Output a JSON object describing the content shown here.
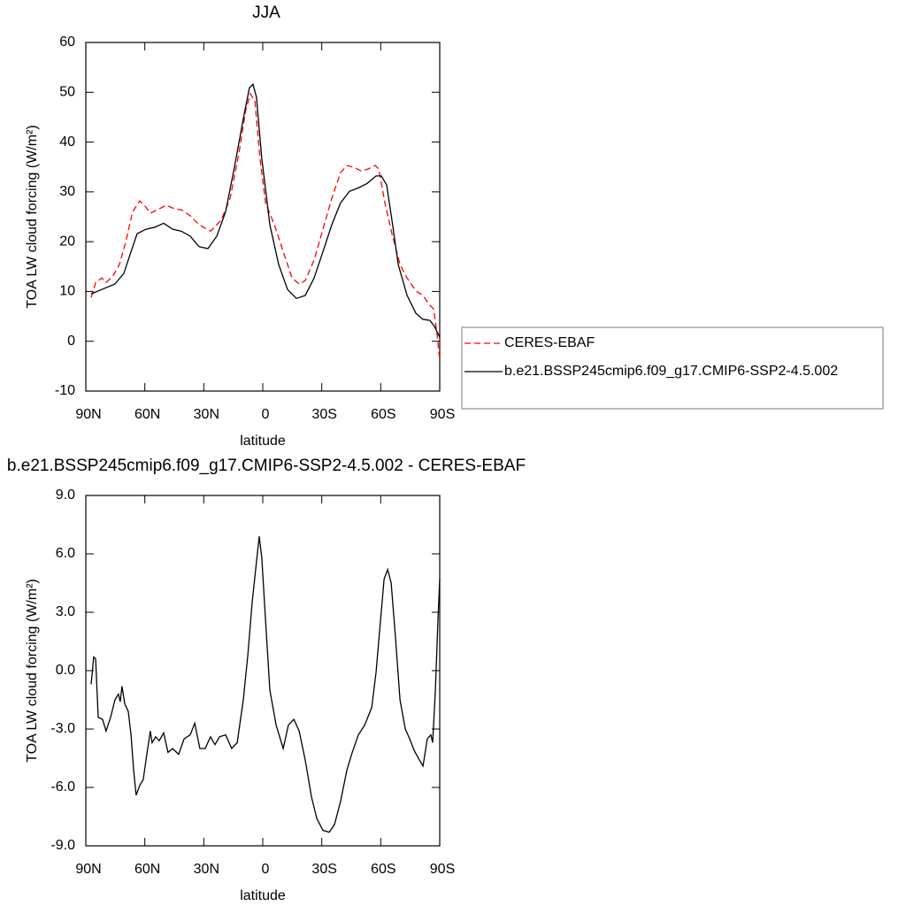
{
  "chart_data": [
    {
      "type": "line",
      "title": "JJA",
      "xlabel": "latitude",
      "ylabel": "TOA LW cloud forcing (W/m²)",
      "xlim": [
        90,
        -90
      ],
      "xticks": [
        {
          "value": 90,
          "label": "90N"
        },
        {
          "value": 60,
          "label": "60N"
        },
        {
          "value": 30,
          "label": "30N"
        },
        0,
        {
          "value": -30,
          "label": "30S"
        },
        {
          "value": -60,
          "label": "60S"
        },
        {
          "value": -90,
          "label": "90S"
        }
      ],
      "ylim": [
        -10,
        60
      ],
      "yticks": [
        -10,
        0,
        10,
        20,
        30,
        40,
        50,
        60
      ],
      "legend": "right",
      "series": [
        {
          "name": "CERES-EBAF",
          "color": "#ff0000",
          "dashed": true,
          "x": [
            87.3,
            85,
            81.9,
            79.7,
            76,
            72.9,
            69.8,
            66.2,
            62.6,
            59.4,
            57.2,
            52.7,
            49,
            45,
            41.4,
            36.9,
            32.4,
            26.6,
            21.2,
            16.6,
            12.2,
            8.6,
            6.3,
            4,
            1.4,
            -1.4,
            -5.9,
            -10.4,
            -14.9,
            -18.5,
            -21.6,
            -26.1,
            -30.6,
            -35.1,
            -39.6,
            -42.8,
            -46.4,
            -50,
            -53.6,
            -57.2,
            -59,
            -62.1,
            -65.7,
            -69.8,
            -73.4,
            -77.9,
            -81.5,
            -84.6,
            -86.9,
            -88.7,
            -90
          ],
          "values": [
            8.8,
            11.8,
            12.7,
            11.8,
            13.2,
            15.4,
            19.8,
            26,
            28.2,
            26.9,
            25.7,
            26.6,
            27.3,
            26.6,
            26.4,
            25.2,
            23.4,
            22.1,
            24.3,
            28.7,
            37.6,
            46.5,
            49.7,
            48.2,
            36.7,
            27.8,
            23.4,
            18,
            12.7,
            11.5,
            12.2,
            16.3,
            22.5,
            28.7,
            33.9,
            35.3,
            34.9,
            34.2,
            34.6,
            35.3,
            34.6,
            27.8,
            21.6,
            15.4,
            12.7,
            10.1,
            9.2,
            7.4,
            6.5,
            1.2,
            -3.8
          ]
        },
        {
          "name": "b.e21.BSSP245cmip6.f09_g17.CMIP6-SSP2-4.5.002",
          "color": "#000000",
          "dashed": false,
          "x": [
            87.3,
            81.9,
            75.2,
            70.7,
            67,
            63.9,
            59.4,
            54.9,
            50.4,
            45.9,
            41.4,
            36.9,
            32.4,
            27.9,
            23.4,
            18.9,
            14.4,
            9.9,
            6.8,
            5,
            3.2,
            0.5,
            -3.6,
            -8.1,
            -12.6,
            -17.1,
            -21.6,
            -26.1,
            -30.6,
            -35.1,
            -39.6,
            -44.1,
            -48.6,
            -53.1,
            -57.6,
            -60.3,
            -63,
            -65.7,
            -68.9,
            -73.4,
            -77.9,
            -81.5,
            -85,
            -87.3,
            -90
          ],
          "values": [
            9.5,
            10.4,
            11.5,
            13.6,
            18,
            21.6,
            22.5,
            22.9,
            23.7,
            22.5,
            22.1,
            21.1,
            19,
            18.6,
            21.1,
            26,
            35,
            44.7,
            50.9,
            51.6,
            49,
            36.7,
            23.4,
            15.4,
            10.4,
            8.6,
            9.2,
            12.7,
            18,
            23.4,
            27.8,
            30.1,
            30.8,
            31.7,
            33.2,
            33.2,
            31.4,
            24.3,
            15.4,
            9.2,
            5.6,
            4.4,
            4.2,
            3,
            0.8
          ]
        }
      ]
    },
    {
      "type": "line",
      "title": "b.e21.BSSP245cmip6.f09_g17.CMIP6-SSP2-4.5.002 - CERES-EBAF",
      "xlabel": "latitude",
      "ylabel": "TOA LW cloud forcing (W/m²)",
      "xlim": [
        90,
        -90
      ],
      "xticks": [
        {
          "value": 90,
          "label": "90N"
        },
        {
          "value": 60,
          "label": "60N"
        },
        {
          "value": 30,
          "label": "30N"
        },
        0,
        {
          "value": -30,
          "label": "30S"
        },
        {
          "value": -60,
          "label": "60S"
        },
        {
          "value": -90,
          "label": "90S"
        }
      ],
      "ylim": [
        -9,
        9
      ],
      "yticks": [
        {
          "value": -9,
          "label": "-9.0"
        },
        {
          "value": -6,
          "label": "-6.0"
        },
        {
          "value": -3,
          "label": "-3.0"
        },
        {
          "value": 0,
          "label": "0.0"
        },
        {
          "value": 3,
          "label": "3.0"
        },
        {
          "value": 6,
          "label": "6.0"
        },
        {
          "value": 9,
          "label": "9.0"
        }
      ],
      "color": "#000000",
      "x": [
        87.3,
        86,
        85,
        83.7,
        81.5,
        79.7,
        77.4,
        75.2,
        73.4,
        72.5,
        71.6,
        70.2,
        68.4,
        67,
        65.7,
        64.4,
        62.6,
        60.8,
        59.4,
        57.2,
        56.3,
        54.5,
        52.7,
        50.4,
        48.2,
        45.9,
        42.8,
        40,
        36.9,
        34.6,
        32,
        29.3,
        26.6,
        24.3,
        22,
        18.9,
        15.8,
        13,
        9.9,
        7.6,
        5.4,
        3.2,
        1.8,
        0.5,
        -1.4,
        -3.6,
        -6.8,
        -10.4,
        -13,
        -15.8,
        -18.5,
        -21.6,
        -24.8,
        -27.5,
        -30.6,
        -33.8,
        -36.5,
        -39.6,
        -42.8,
        -45.5,
        -48.6,
        -51.8,
        -55.4,
        -57.6,
        -59.9,
        -61.7,
        -63.5,
        -65.3,
        -67.5,
        -69.8,
        -72.5,
        -74.7,
        -77,
        -79.7,
        -81.5,
        -83.7,
        -85.5,
        -86.4,
        -87.8,
        -89.1,
        -90
      ],
      "values": [
        -0.7,
        0.7,
        0.6,
        -2.4,
        -2.5,
        -3.1,
        -2.4,
        -1.5,
        -1.2,
        -1.6,
        -0.8,
        -1.7,
        -2.1,
        -3.3,
        -5.1,
        -6.4,
        -5.9,
        -5.6,
        -4.6,
        -3.1,
        -3.7,
        -3.4,
        -3.6,
        -3.2,
        -4.2,
        -4,
        -4.3,
        -3.5,
        -3.3,
        -2.7,
        -4,
        -4,
        -3.4,
        -3.8,
        -3.4,
        -3.3,
        -4,
        -3.7,
        -1.5,
        0.8,
        3.5,
        5.6,
        6.9,
        5.8,
        2.6,
        -1,
        -2.8,
        -4,
        -2.8,
        -2.5,
        -3.1,
        -4.6,
        -6.5,
        -7.6,
        -8.2,
        -8.3,
        -7.9,
        -6.7,
        -5.1,
        -4.2,
        -3.3,
        -2.8,
        -1.9,
        -0.1,
        2.6,
        4.7,
        5.2,
        4.5,
        1.7,
        -1.5,
        -3,
        -3.5,
        -4.1,
        -4.6,
        -4.9,
        -3.5,
        -3.3,
        -3.7,
        -1,
        2.6,
        4.7
      ]
    }
  ]
}
